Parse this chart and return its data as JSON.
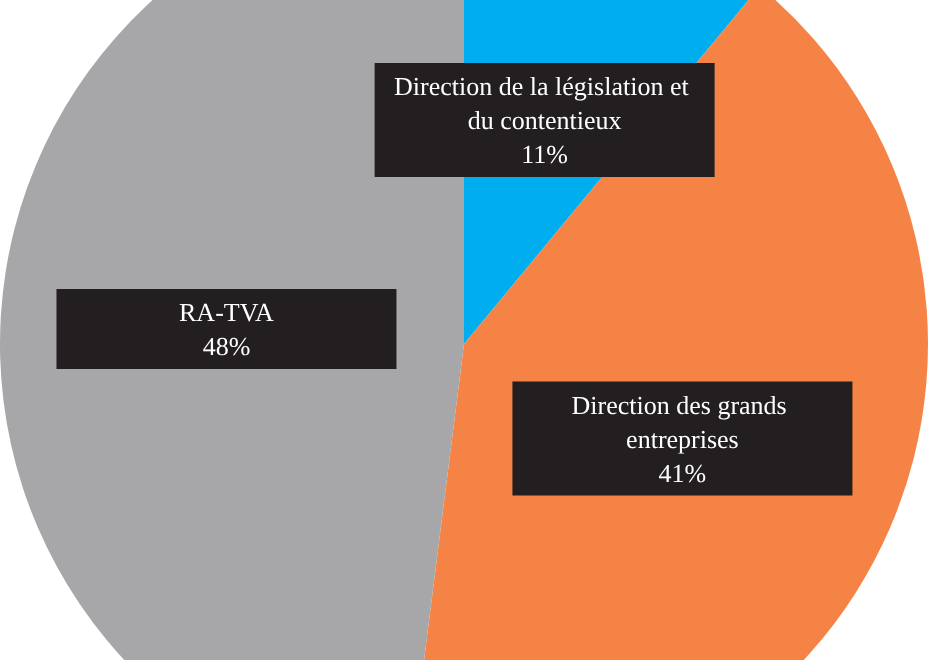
{
  "chart_data": {
    "type": "pie",
    "categories": [
      "Direction de la législation et du contentieux",
      "Direction des grands entreprises",
      "RA-TVA"
    ],
    "values": [
      11,
      41,
      48
    ],
    "colors": [
      "#00aeef",
      "#f58345",
      "#a7a7a9"
    ],
    "value_labels": [
      "11%",
      "41%",
      "48%"
    ],
    "legend": false
  }
}
